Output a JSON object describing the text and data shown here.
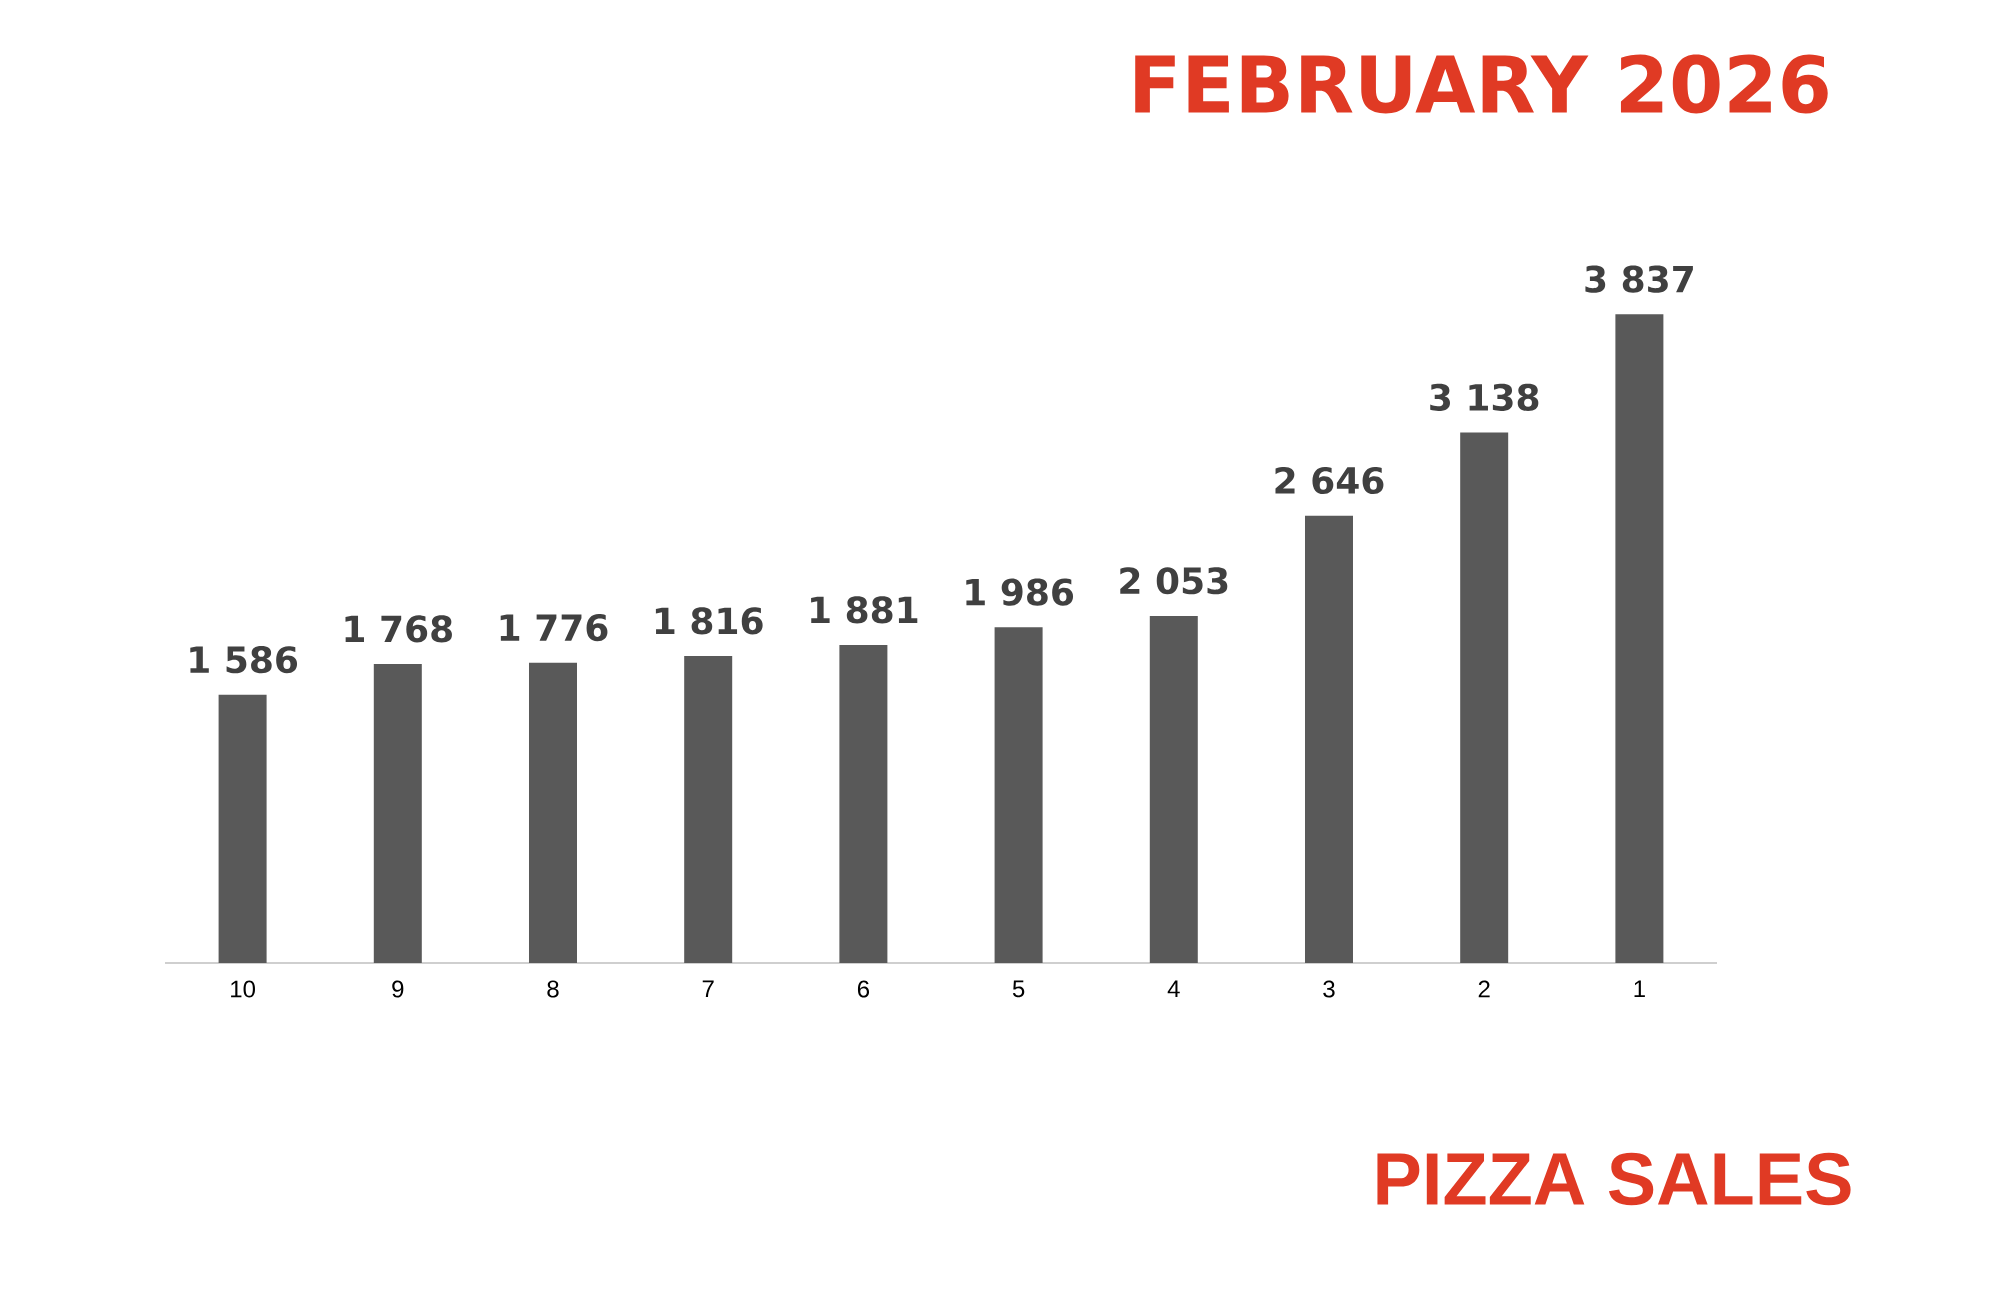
{
  "chart_data": {
    "type": "bar",
    "title": "FEBRUARY 2026",
    "subtitle": "PIZZA SALES",
    "categories": [
      "10",
      "9",
      "8",
      "7",
      "6",
      "5",
      "4",
      "3",
      "2",
      "1"
    ],
    "values": [
      1586,
      1768,
      1776,
      1816,
      1881,
      1986,
      2053,
      2646,
      3138,
      3837
    ],
    "value_labels": [
      "1 586",
      "1 768",
      "1 776",
      "1 816",
      "1 881",
      "1 986",
      "2 053",
      "2 646",
      "3 138",
      "3 837"
    ],
    "color": "#595959",
    "tick_labels": "x",
    "grid": false
  }
}
